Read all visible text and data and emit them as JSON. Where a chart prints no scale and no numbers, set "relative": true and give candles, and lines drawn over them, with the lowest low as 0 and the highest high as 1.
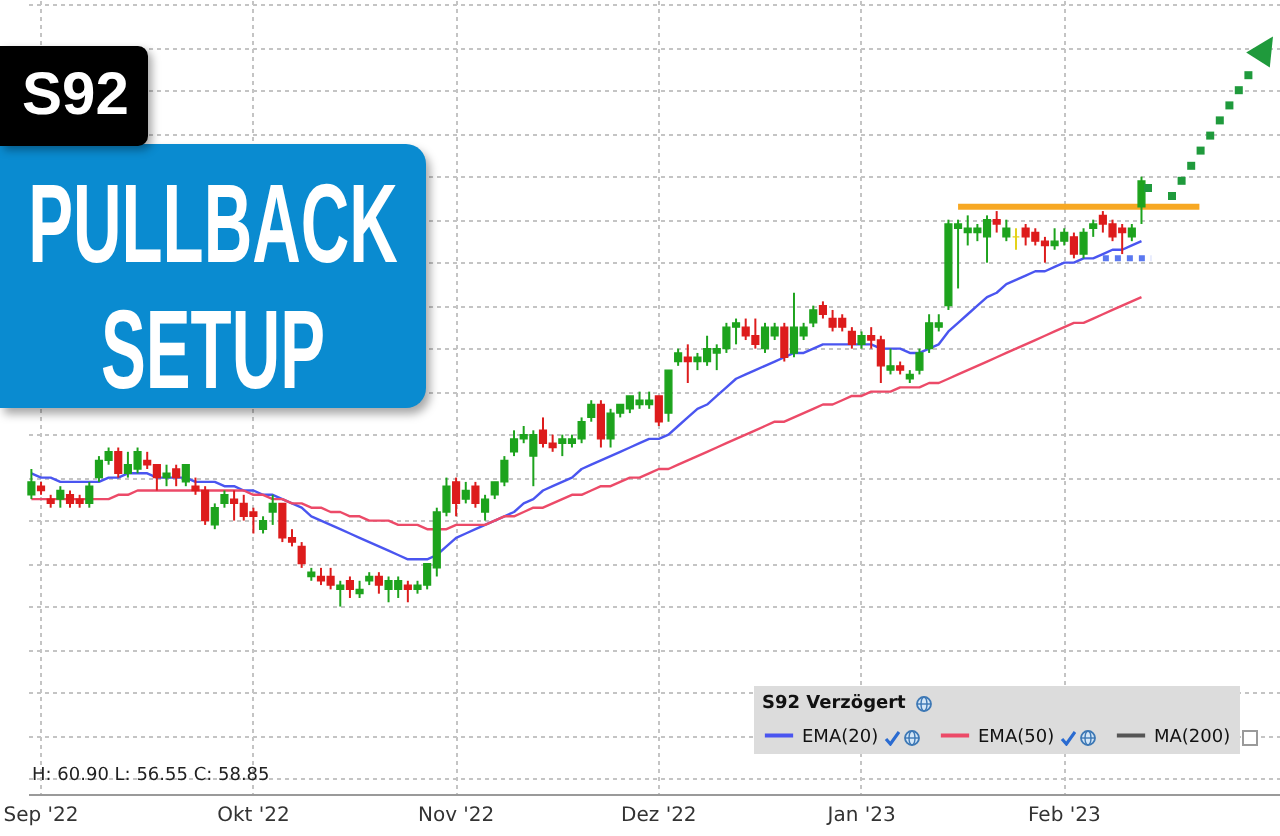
{
  "chart_data": {
    "type": "candlestick",
    "title": "S92",
    "subtitle": "PULLBACK SETUP",
    "relative": true,
    "grid": true,
    "legend": "bottom right",
    "legend_title": "S92 Verzögert",
    "annotations": [
      "H: 60.90 L: 56.55 C: 58.85"
    ],
    "categories": [
      null,
      "Sep '22",
      null,
      null,
      null,
      null,
      null,
      null,
      null,
      null,
      null,
      null,
      null,
      null,
      null,
      null,
      null,
      null,
      null,
      null,
      null,
      null,
      null,
      "Okt '22",
      null,
      null,
      null,
      null,
      null,
      null,
      null,
      null,
      null,
      null,
      null,
      null,
      null,
      null,
      null,
      null,
      null,
      null,
      null,
      null,
      "Nov '22",
      null,
      null,
      null,
      null,
      null,
      null,
      null,
      null,
      null,
      null,
      null,
      null,
      null,
      null,
      null,
      null,
      null,
      null,
      null,
      null,
      "Dez '22",
      null,
      null,
      null,
      null,
      null,
      null,
      null,
      null,
      null,
      null,
      null,
      null,
      null,
      null,
      null,
      null,
      null,
      null,
      null,
      null,
      "Jan '23",
      null,
      null,
      null,
      null,
      null,
      null,
      null,
      null,
      null,
      null,
      null,
      null,
      null,
      null,
      null,
      null,
      null,
      null,
      null,
      null,
      "Feb '23",
      null,
      null,
      null,
      null,
      null,
      null,
      null,
      null,
      null,
      null,
      null,
      null,
      null,
      null,
      null,
      null,
      null,
      null,
      null,
      null,
      null,
      null
    ],
    "ohlc": [
      [
        0.26,
        0.32,
        0.25,
        0.29
      ],
      [
        0.28,
        0.29,
        0.26,
        0.27
      ],
      [
        0.25,
        0.26,
        0.23,
        0.24
      ],
      [
        0.25,
        0.28,
        0.23,
        0.27
      ],
      [
        0.26,
        0.27,
        0.23,
        0.24
      ],
      [
        0.25,
        0.26,
        0.23,
        0.24
      ],
      [
        0.24,
        0.29,
        0.23,
        0.28
      ],
      [
        0.3,
        0.35,
        0.29,
        0.34
      ],
      [
        0.34,
        0.37,
        0.33,
        0.36
      ],
      [
        0.36,
        0.37,
        0.3,
        0.31
      ],
      [
        0.31,
        0.36,
        0.3,
        0.33
      ],
      [
        0.32,
        0.37,
        0.31,
        0.36
      ],
      [
        0.34,
        0.36,
        0.32,
        0.33
      ],
      [
        0.33,
        0.33,
        0.27,
        0.3
      ],
      [
        0.3,
        0.33,
        0.28,
        0.31
      ],
      [
        0.32,
        0.33,
        0.28,
        0.3
      ],
      [
        0.29,
        0.33,
        0.28,
        0.33
      ],
      [
        0.28,
        0.3,
        0.26,
        0.27
      ],
      [
        0.27,
        0.28,
        0.19,
        0.2
      ],
      [
        0.19,
        0.24,
        0.18,
        0.23
      ],
      [
        0.24,
        0.27,
        0.23,
        0.26
      ],
      [
        0.25,
        0.27,
        0.2,
        0.24
      ],
      [
        0.24,
        0.26,
        0.2,
        0.21
      ],
      [
        0.22,
        0.23,
        0.17,
        0.21
      ],
      [
        0.18,
        0.21,
        0.17,
        0.2
      ],
      [
        0.22,
        0.26,
        0.19,
        0.24
      ],
      [
        0.24,
        0.24,
        0.15,
        0.16
      ],
      [
        0.16,
        0.18,
        0.14,
        0.15
      ],
      [
        0.14,
        0.15,
        0.09,
        0.1
      ],
      [
        0.07,
        0.09,
        0.06,
        0.08
      ],
      [
        0.07,
        0.09,
        0.05,
        0.06
      ],
      [
        0.07,
        0.09,
        0.04,
        0.05
      ],
      [
        0.04,
        0.06,
        0,
        0.05
      ],
      [
        0.06,
        0.07,
        0.02,
        0.04
      ],
      [
        0.03,
        0.06,
        0.02,
        0.04
      ],
      [
        0.06,
        0.08,
        0.05,
        0.07
      ],
      [
        0.07,
        0.08,
        0.03,
        0.05
      ],
      [
        0.04,
        0.07,
        0.01,
        0.06
      ],
      [
        0.04,
        0.07,
        0.02,
        0.06
      ],
      [
        0.05,
        0.06,
        0.01,
        0.04
      ],
      [
        0.04,
        0.06,
        0.03,
        0.05
      ],
      [
        0.05,
        0.1,
        0.04,
        0.1
      ],
      [
        0.09,
        0.23,
        0.07,
        0.22
      ],
      [
        0.22,
        0.3,
        0.21,
        0.28
      ],
      [
        0.29,
        0.3,
        0.21,
        0.24
      ],
      [
        0.25,
        0.29,
        0.24,
        0.27
      ],
      [
        0.28,
        0.29,
        0.23,
        0.24
      ],
      [
        0.22,
        0.26,
        0.2,
        0.25
      ],
      [
        0.26,
        0.29,
        0.25,
        0.29
      ],
      [
        0.29,
        0.35,
        0.28,
        0.34
      ],
      [
        0.36,
        0.41,
        0.35,
        0.39
      ],
      [
        0.39,
        0.42,
        0.38,
        0.4
      ],
      [
        0.35,
        0.41,
        0.28,
        0.4
      ],
      [
        0.41,
        0.44,
        0.37,
        0.38
      ],
      [
        0.38,
        0.4,
        0.36,
        0.37
      ],
      [
        0.38,
        0.4,
        0.35,
        0.39
      ],
      [
        0.38,
        0.4,
        0.37,
        0.39
      ],
      [
        0.39,
        0.44,
        0.38,
        0.43
      ],
      [
        0.44,
        0.48,
        0.43,
        0.47
      ],
      [
        0.47,
        0.48,
        0.37,
        0.39
      ],
      [
        0.39,
        0.46,
        0.37,
        0.45
      ],
      [
        0.45,
        0.47,
        0.44,
        0.47
      ],
      [
        0.46,
        0.49,
        0.45,
        0.49
      ],
      [
        0.47,
        0.5,
        0.46,
        0.48
      ],
      [
        0.47,
        0.5,
        0.46,
        0.48
      ],
      [
        0.49,
        0.49,
        0.42,
        0.43
      ],
      [
        0.45,
        0.55,
        0.43,
        0.55
      ],
      [
        0.57,
        0.6,
        0.56,
        0.59
      ],
      [
        0.58,
        0.61,
        0.52,
        0.57
      ],
      [
        0.57,
        0.59,
        0.55,
        0.58
      ],
      [
        0.57,
        0.63,
        0.56,
        0.6
      ],
      [
        0.59,
        0.61,
        0.55,
        0.6
      ],
      [
        0.6,
        0.66,
        0.59,
        0.65
      ],
      [
        0.65,
        0.67,
        0.61,
        0.66
      ],
      [
        0.65,
        0.67,
        0.62,
        0.63
      ],
      [
        0.63,
        0.67,
        0.6,
        0.61
      ],
      [
        0.6,
        0.66,
        0.59,
        0.65
      ],
      [
        0.63,
        0.66,
        0.62,
        0.65
      ],
      [
        0.65,
        0.66,
        0.57,
        0.58
      ],
      [
        0.59,
        0.73,
        0.58,
        0.65
      ],
      [
        0.63,
        0.66,
        0.62,
        0.65
      ],
      [
        0.66,
        0.7,
        0.65,
        0.69
      ],
      [
        0.7,
        0.71,
        0.67,
        0.68
      ],
      [
        0.67,
        0.69,
        0.64,
        0.65
      ],
      [
        0.67,
        0.68,
        0.64,
        0.65
      ],
      [
        0.64,
        0.65,
        0.6,
        0.61
      ],
      [
        0.61,
        0.64,
        0.6,
        0.63
      ],
      [
        0.63,
        0.65,
        0.6,
        0.62
      ],
      [
        0.62,
        0.63,
        0.52,
        0.56
      ],
      [
        0.55,
        0.6,
        0.54,
        0.56
      ],
      [
        0.56,
        0.57,
        0.54,
        0.55
      ],
      [
        0.53,
        0.55,
        0.52,
        0.54
      ],
      [
        0.55,
        0.6,
        0.54,
        0.59
      ],
      [
        0.6,
        0.68,
        0.59,
        0.66
      ],
      [
        0.65,
        0.68,
        0.64,
        0.66
      ],
      [
        0.7,
        0.9,
        0.69,
        0.89
      ],
      [
        0.88,
        0.9,
        0.74,
        0.89
      ],
      [
        0.87,
        0.91,
        0.84,
        0.88
      ],
      [
        0.87,
        0.89,
        0.85,
        0.88
      ],
      [
        0.86,
        0.91,
        0.8,
        0.9
      ],
      [
        0.9,
        0.92,
        0.87,
        0.89
      ],
      [
        0.86,
        0.9,
        0.85,
        0.88
      ],
      [
        0.86,
        0.88,
        0.83,
        0.86
      ],
      [
        0.88,
        0.89,
        0.84,
        0.86
      ],
      [
        0.87,
        0.88,
        0.84,
        0.85
      ],
      [
        0.85,
        0.86,
        0.8,
        0.84
      ],
      [
        0.84,
        0.88,
        0.83,
        0.85
      ],
      [
        0.85,
        0.88,
        0.84,
        0.87
      ],
      [
        0.86,
        0.87,
        0.81,
        0.82
      ],
      [
        0.82,
        0.88,
        0.81,
        0.87
      ],
      [
        0.88,
        0.9,
        0.86,
        0.89
      ],
      [
        0.91,
        0.92,
        0.87,
        0.89
      ],
      [
        0.89,
        0.9,
        0.85,
        0.86
      ],
      [
        0.88,
        0.89,
        0.82,
        0.87
      ],
      [
        0.86,
        0.89,
        0.85,
        0.88
      ],
      [
        0.93,
        1,
        0.89,
        0.99
      ],
      null,
      null,
      null,
      null,
      null,
      null,
      null,
      null,
      null,
      null,
      null,
      null,
      null,
      null
    ],
    "colors": [
      "#1da31d",
      "#dd1c1c",
      "#dd1c1c",
      "#1da31d",
      "#dd1c1c",
      "#dd1c1c",
      "#1da31d",
      "#1da31d",
      "#1da31d",
      "#dd1c1c",
      "#1da31d",
      "#1da31d",
      "#dd1c1c",
      "#dd1c1c",
      "#1da31d",
      "#dd1c1c",
      "#1da31d",
      "#dd1c1c",
      "#dd1c1c",
      "#1da31d",
      "#1da31d",
      "#dd1c1c",
      "#dd1c1c",
      "#dd1c1c",
      "#1da31d",
      "#1da31d",
      "#dd1c1c",
      "#dd1c1c",
      "#dd1c1c",
      "#1da31d",
      "#dd1c1c",
      "#dd1c1c",
      "#1da31d",
      "#dd1c1c",
      "#1da31d",
      "#1da31d",
      "#dd1c1c",
      "#1da31d",
      "#1da31d",
      "#dd1c1c",
      "#1da31d",
      "#1da31d",
      "#1da31d",
      "#1da31d",
      "#dd1c1c",
      "#1da31d",
      "#dd1c1c",
      "#1da31d",
      "#1da31d",
      "#1da31d",
      "#1da31d",
      "#1da31d",
      "#1da31d",
      "#dd1c1c",
      "#dd1c1c",
      "#1da31d",
      "#1da31d",
      "#1da31d",
      "#1da31d",
      "#dd1c1c",
      "#1da31d",
      "#1da31d",
      "#1da31d",
      "#1da31d",
      "#1da31d",
      "#dd1c1c",
      "#1da31d",
      "#1da31d",
      "#dd1c1c",
      "#1da31d",
      "#1da31d",
      "#1da31d",
      "#1da31d",
      "#1da31d",
      "#dd1c1c",
      "#dd1c1c",
      "#1da31d",
      "#1da31d",
      "#dd1c1c",
      "#1da31d",
      "#1da31d",
      "#1da31d",
      "#dd1c1c",
      "#dd1c1c",
      "#dd1c1c",
      "#dd1c1c",
      "#1da31d",
      "#dd1c1c",
      "#dd1c1c",
      "#1da31d",
      "#dd1c1c",
      "#1da31d",
      "#1da31d",
      "#1da31d",
      "#1da31d",
      "#1da31d",
      "#1da31d",
      "#1da31d",
      "#1da31d",
      "#1da31d",
      "#dd1c1c",
      "#1da31d",
      "#e4d21a",
      "#dd1c1c",
      "#dd1c1c",
      "#dd1c1c",
      "#1da31d",
      "#1da31d",
      "#dd1c1c",
      "#1da31d",
      "#1da31d",
      "#dd1c1c",
      "#dd1c1c",
      "#dd1c1c",
      "#1da31d",
      "#1da31d",
      null,
      null,
      null,
      null,
      null,
      null,
      null,
      null,
      null,
      null,
      null,
      null,
      null,
      null
    ],
    "series": [
      {
        "name": "EMA(20)",
        "type": "line",
        "color": "#4a55f0",
        "values": [
          0.31,
          0.3,
          0.3,
          0.29,
          0.29,
          0.29,
          0.29,
          0.29,
          0.3,
          0.3,
          0.31,
          0.31,
          0.31,
          0.3,
          0.3,
          0.3,
          0.3,
          0.29,
          0.29,
          0.29,
          0.28,
          0.28,
          0.27,
          0.27,
          0.26,
          0.26,
          0.25,
          0.24,
          0.23,
          0.21,
          0.2,
          0.19,
          0.18,
          0.17,
          0.16,
          0.15,
          0.14,
          0.13,
          0.12,
          0.11,
          0.11,
          0.11,
          0.12,
          0.14,
          0.16,
          0.17,
          0.18,
          0.19,
          0.2,
          0.21,
          0.22,
          0.24,
          0.25,
          0.27,
          0.28,
          0.29,
          0.3,
          0.32,
          0.33,
          0.34,
          0.35,
          0.36,
          0.37,
          0.38,
          0.39,
          0.39,
          0.4,
          0.42,
          0.44,
          0.46,
          0.47,
          0.49,
          0.51,
          0.53,
          0.54,
          0.55,
          0.56,
          0.57,
          0.58,
          0.59,
          0.59,
          0.6,
          0.61,
          0.61,
          0.61,
          0.61,
          0.61,
          0.61,
          0.6,
          0.6,
          0.6,
          0.59,
          0.59,
          0.6,
          0.61,
          0.64,
          0.66,
          0.68,
          0.7,
          0.72,
          0.73,
          0.75,
          0.76,
          0.77,
          0.78,
          0.78,
          0.79,
          0.8,
          0.8,
          0.81,
          0.81,
          0.82,
          0.83,
          0.83,
          0.84,
          0.85,
          null,
          null,
          null,
          null,
          null,
          null,
          null,
          null,
          null,
          null,
          null,
          null,
          null,
          null
        ]
      },
      {
        "name": "EMA(50)",
        "type": "line",
        "color": "#ec4a68",
        "values": [
          0.25,
          0.25,
          0.25,
          0.25,
          0.25,
          0.25,
          0.25,
          0.25,
          0.25,
          0.26,
          0.26,
          0.27,
          0.27,
          0.27,
          0.27,
          0.27,
          0.27,
          0.27,
          0.27,
          0.27,
          0.27,
          0.27,
          0.27,
          0.26,
          0.26,
          0.25,
          0.25,
          0.24,
          0.24,
          0.23,
          0.23,
          0.22,
          0.22,
          0.21,
          0.21,
          0.2,
          0.2,
          0.2,
          0.19,
          0.19,
          0.19,
          0.18,
          0.18,
          0.18,
          0.19,
          0.19,
          0.19,
          0.19,
          0.2,
          0.21,
          0.21,
          0.22,
          0.23,
          0.23,
          0.24,
          0.25,
          0.26,
          0.26,
          0.27,
          0.28,
          0.28,
          0.29,
          0.3,
          0.3,
          0.31,
          0.32,
          0.32,
          0.33,
          0.34,
          0.35,
          0.36,
          0.37,
          0.38,
          0.39,
          0.4,
          0.41,
          0.42,
          0.43,
          0.43,
          0.44,
          0.45,
          0.46,
          0.47,
          0.47,
          0.48,
          0.49,
          0.49,
          0.5,
          0.5,
          0.5,
          0.51,
          0.51,
          0.51,
          0.52,
          0.52,
          0.53,
          0.54,
          0.55,
          0.56,
          0.57,
          0.58,
          0.59,
          0.6,
          0.61,
          0.62,
          0.63,
          0.64,
          0.65,
          0.66,
          0.66,
          0.67,
          0.68,
          0.69,
          0.7,
          0.71,
          0.72,
          null,
          null,
          null,
          null,
          null,
          null,
          null,
          null,
          null,
          null,
          null,
          null,
          null,
          null
        ]
      },
      {
        "name": "MA(200)",
        "type": "line",
        "color": "#555555",
        "values": [
          null,
          null,
          null,
          null,
          null,
          null,
          null,
          null,
          null,
          null,
          null,
          null,
          null,
          null,
          null,
          null,
          null,
          null,
          null,
          null,
          null,
          null,
          null,
          null,
          null,
          null,
          null,
          null,
          null,
          null,
          null,
          null,
          null,
          null,
          null,
          null,
          null,
          null,
          null,
          null,
          null,
          null,
          null,
          null,
          null,
          null,
          null,
          null,
          null,
          null,
          null,
          null,
          null,
          null,
          null,
          null,
          null,
          null,
          null,
          null,
          null,
          null,
          null,
          null,
          null,
          null,
          null,
          null,
          null,
          null,
          null,
          null,
          null,
          null,
          null,
          null,
          null,
          null,
          null,
          null,
          null,
          null,
          null,
          null,
          null,
          null,
          null,
          null,
          null,
          null,
          null,
          null,
          null,
          null,
          null,
          null,
          null,
          null,
          null,
          null,
          null,
          null,
          null,
          null,
          null,
          null,
          null,
          null,
          null,
          null,
          null,
          null,
          null,
          null,
          null,
          null,
          null,
          null,
          null,
          null,
          null,
          null,
          null,
          null,
          null,
          null,
          null,
          null,
          null,
          null
        ]
      },
      {
        "type": "line",
        "color": "#f7a823",
        "values": [
          null,
          null,
          null,
          null,
          null,
          null,
          null,
          null,
          null,
          null,
          null,
          null,
          null,
          null,
          null,
          null,
          null,
          null,
          null,
          null,
          null,
          null,
          null,
          null,
          null,
          null,
          null,
          null,
          null,
          null,
          null,
          null,
          null,
          null,
          null,
          null,
          null,
          null,
          null,
          null,
          null,
          null,
          null,
          null,
          null,
          null,
          null,
          null,
          null,
          null,
          null,
          null,
          null,
          null,
          null,
          null,
          null,
          null,
          null,
          null,
          null,
          null,
          null,
          null,
          null,
          null,
          null,
          null,
          null,
          null,
          null,
          null,
          null,
          null,
          null,
          null,
          null,
          null,
          null,
          null,
          null,
          null,
          null,
          null,
          null,
          null,
          null,
          null,
          null,
          null,
          null,
          null,
          null,
          null,
          null,
          null,
          0.93,
          0.93,
          0.93,
          0.93,
          0.93,
          0.93,
          0.93,
          0.93,
          0.93,
          0.93,
          0.93,
          0.93,
          0.93,
          0.93,
          0.93,
          0.93,
          0.93,
          0.93,
          0.93,
          0.93,
          0.93,
          0.93,
          0.93,
          0.93,
          0.93,
          0.93,
          null,
          null,
          null,
          null,
          null,
          null,
          null,
          null
        ]
      },
      {
        "type": "line",
        "line_style": "dotted",
        "color": "#5b78f0",
        "values": [
          null,
          null,
          null,
          null,
          null,
          null,
          null,
          null,
          null,
          null,
          null,
          null,
          null,
          null,
          null,
          null,
          null,
          null,
          null,
          null,
          null,
          null,
          null,
          null,
          null,
          null,
          null,
          null,
          null,
          null,
          null,
          null,
          null,
          null,
          null,
          null,
          null,
          null,
          null,
          null,
          null,
          null,
          null,
          null,
          null,
          null,
          null,
          null,
          null,
          null,
          null,
          null,
          null,
          null,
          null,
          null,
          null,
          null,
          null,
          null,
          null,
          null,
          null,
          null,
          null,
          null,
          null,
          null,
          null,
          null,
          null,
          null,
          null,
          null,
          null,
          null,
          null,
          null,
          null,
          null,
          null,
          null,
          null,
          null,
          null,
          null,
          null,
          null,
          null,
          null,
          null,
          null,
          null,
          null,
          null,
          null,
          null,
          null,
          null,
          null,
          null,
          null,
          null,
          null,
          null,
          null,
          null,
          null,
          null,
          null,
          null,
          0.81,
          0.81,
          0.81,
          0.81,
          0.81,
          0.81,
          null,
          null,
          null,
          null,
          null,
          null,
          null,
          null,
          null,
          null,
          null,
          null,
          null
        ]
      }
    ]
  }
}
